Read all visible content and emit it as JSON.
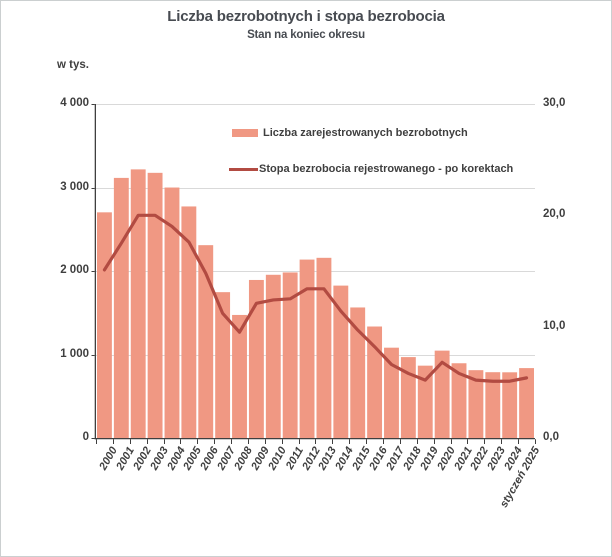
{
  "title": "Liczba bezrobotnych i stopa bezrobocia",
  "subtitle": "Stan na koniec okresu",
  "colors": {
    "bar": "#F09883",
    "line": "#B24B42",
    "grid": "#D9D9D9",
    "axis": "#3F3F3F",
    "text": "#3F3F3F",
    "title": "#474B51"
  },
  "chart_data": {
    "type": "combo-bar-line",
    "title": "Liczba bezrobotnych i stopa bezrobocia",
    "subtitle": "Stan na koniec okresu",
    "categories": [
      "2000",
      "2001",
      "2002",
      "2003",
      "2004",
      "2005",
      "2006",
      "2007",
      "2008",
      "2009",
      "2010",
      "2011",
      "2012",
      "2013",
      "2014",
      "2015",
      "2016",
      "2017",
      "2018",
      "2019",
      "2020",
      "2021",
      "2022",
      "2023",
      "2024",
      "styczeń 2025"
    ],
    "series": [
      {
        "name": "Liczba zarejestrowanych bezrobotnych",
        "type": "bar",
        "axis": "left",
        "unit": "tys.",
        "values": [
          2702.6,
          3115.1,
          3217.0,
          3175.7,
          2999.6,
          2773.0,
          2309.4,
          1746.6,
          1473.8,
          1892.7,
          1954.7,
          1982.7,
          2136.8,
          2157.9,
          1825.2,
          1563.3,
          1335.2,
          1081.7,
          968.9,
          866.4,
          1046.4,
          895.2,
          812.3,
          788.2,
          786.8,
          837.1
        ]
      },
      {
        "name": "Stopa bezrobocia rejestrowanego - po korektach",
        "type": "line",
        "axis": "right",
        "unit": "%",
        "values": [
          15.1,
          17.5,
          20.0,
          20.0,
          19.0,
          17.6,
          14.8,
          11.2,
          9.5,
          12.1,
          12.4,
          12.5,
          13.4,
          13.4,
          11.4,
          9.7,
          8.2,
          6.6,
          5.8,
          5.2,
          6.8,
          5.8,
          5.2,
          5.1,
          5.1,
          5.4
        ]
      }
    ],
    "left_axis": {
      "label": "w tys.",
      "min": 0,
      "max": 4000,
      "tick_values": [
        0,
        1000,
        2000,
        3000,
        4000
      ],
      "tick_labels": [
        "0",
        "1 000",
        "2 000",
        "3 000",
        "4 000"
      ]
    },
    "right_axis": {
      "min": 0,
      "max": 30,
      "tick_values": [
        0,
        10,
        20,
        30
      ],
      "tick_labels": [
        "0,0",
        "10,0",
        "20,0",
        "30,0"
      ]
    },
    "grid": "horizontal",
    "legend_position": "top-inside"
  }
}
